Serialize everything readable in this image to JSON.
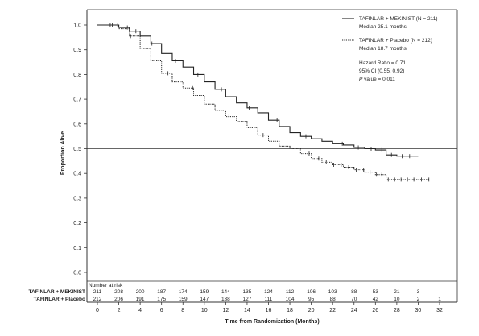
{
  "chart_data": {
    "type": "line",
    "title": "",
    "xlabel": "Time from Randomization (Months)",
    "ylabel": "Proportion Alive",
    "xlim": [
      0,
      32
    ],
    "ylim": [
      0.0,
      1.0
    ],
    "x_ticks": [
      "0",
      "2",
      "4",
      "6",
      "8",
      "10",
      "12",
      "14",
      "16",
      "18",
      "20",
      "22",
      "24",
      "26",
      "28",
      "30",
      "32"
    ],
    "y_ticks": [
      "0.0",
      "0.1",
      "0.2",
      "0.3",
      "0.4",
      "0.5",
      "0.6",
      "0.7",
      "0.8",
      "0.9",
      "1.0"
    ],
    "reference_line_y": 0.5,
    "grid": false,
    "legend_position": "top-right",
    "series": [
      {
        "name": "TAFINLAR + MEKINIST (N = 211)",
        "median_label": "Median 25.1 months",
        "line_style": "solid",
        "color": "#222222",
        "x": [
          0,
          1,
          2,
          3,
          4,
          5,
          6,
          7,
          8,
          9,
          10,
          11,
          12,
          13,
          14,
          15,
          16,
          17,
          18,
          19,
          20,
          21,
          22,
          23,
          24,
          25,
          26,
          27,
          28,
          30
        ],
        "y": [
          1.0,
          1.0,
          0.99,
          0.975,
          0.955,
          0.925,
          0.885,
          0.855,
          0.83,
          0.8,
          0.77,
          0.74,
          0.71,
          0.685,
          0.665,
          0.645,
          0.615,
          0.59,
          0.565,
          0.55,
          0.54,
          0.53,
          0.52,
          0.515,
          0.505,
          0.5,
          0.495,
          0.475,
          0.47,
          0.47
        ],
        "censor_x": [
          1.2,
          1.9,
          2.8,
          3.6,
          5.1,
          7.3,
          9.4,
          11.6,
          14.2,
          16.8,
          19.5,
          21.2,
          22.9,
          24.4,
          25.6,
          26.6,
          27.5,
          28.5,
          29.2
        ]
      },
      {
        "name": "TAFINLAR + Placebo (N = 212)",
        "median_label": "Median 18.7 months",
        "line_style": "dotted",
        "color": "#222222",
        "x": [
          0,
          1,
          2,
          3,
          4,
          5,
          6,
          7,
          8,
          9,
          10,
          11,
          12,
          13,
          14,
          15,
          16,
          17,
          18,
          19,
          20,
          21,
          22,
          23,
          24,
          25,
          26,
          27,
          28,
          30,
          31
        ],
        "y": [
          1.0,
          1.0,
          0.985,
          0.955,
          0.905,
          0.855,
          0.805,
          0.77,
          0.745,
          0.715,
          0.68,
          0.655,
          0.63,
          0.61,
          0.585,
          0.555,
          0.53,
          0.51,
          0.5,
          0.48,
          0.46,
          0.445,
          0.435,
          0.425,
          0.415,
          0.405,
          0.395,
          0.375,
          0.375,
          0.375,
          0.375
        ],
        "censor_x": [
          1.4,
          2.3,
          3.1,
          6.6,
          8.9,
          12.3,
          15.5,
          19.8,
          20.7,
          21.4,
          22.1,
          22.8,
          23.5,
          24.2,
          24.9,
          25.5,
          26.1,
          26.6,
          27.2,
          27.8,
          28.4,
          29.0,
          29.6,
          30.3,
          31.0
        ]
      }
    ],
    "annotations": {
      "hazard_ratio": "Hazard Ratio = 0.71",
      "ci": "95% CI (0.55, 0.92)",
      "p_value_italic": "P",
      "p_value_rest": " value = 0.011"
    },
    "number_at_risk": {
      "title": "Number at risk",
      "time_points": [
        0,
        2,
        4,
        6,
        8,
        10,
        12,
        14,
        16,
        18,
        20,
        22,
        24,
        26,
        28,
        30,
        32
      ],
      "rows": [
        {
          "label": "TAFINLAR + MEKINIST",
          "counts": [
            "211",
            "208",
            "200",
            "187",
            "174",
            "159",
            "144",
            "135",
            "124",
            "112",
            "106",
            "103",
            "88",
            "53",
            "21",
            "3",
            ""
          ]
        },
        {
          "label": "TAFINLAR + Placebo",
          "counts": [
            "212",
            "206",
            "191",
            "175",
            "159",
            "147",
            "138",
            "127",
            "111",
            "104",
            "95",
            "88",
            "70",
            "42",
            "10",
            "2",
            "1"
          ]
        }
      ]
    }
  }
}
